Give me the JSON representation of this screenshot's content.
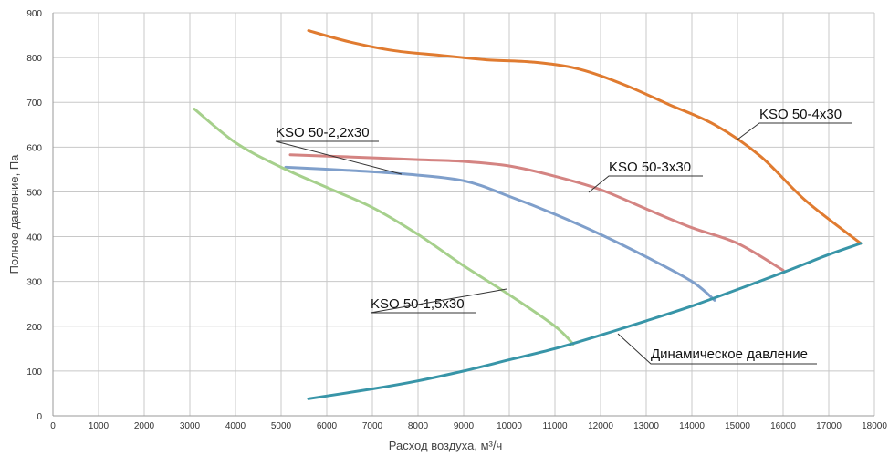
{
  "chart_data": {
    "type": "line",
    "xlabel": "Расход воздуха, м³/ч",
    "ylabel": "Полное давление, Па",
    "xlim": [
      0,
      18000
    ],
    "ylim": [
      0,
      900
    ],
    "xticks": [
      0,
      1000,
      2000,
      3000,
      4000,
      5000,
      6000,
      7000,
      8000,
      9000,
      10000,
      11000,
      12000,
      13000,
      14000,
      15000,
      16000,
      17000,
      18000
    ],
    "yticks": [
      0,
      100,
      200,
      300,
      400,
      500,
      600,
      700,
      800,
      900
    ],
    "grid": true,
    "series": [
      {
        "name": "KSO 50-4x30",
        "color": "#e07b30",
        "points": [
          [
            5600,
            860
          ],
          [
            6500,
            835
          ],
          [
            7500,
            815
          ],
          [
            8500,
            805
          ],
          [
            9500,
            795
          ],
          [
            10500,
            790
          ],
          [
            11500,
            775
          ],
          [
            12500,
            740
          ],
          [
            13500,
            695
          ],
          [
            14500,
            650
          ],
          [
            15500,
            580
          ],
          [
            16500,
            480
          ],
          [
            17700,
            385
          ]
        ]
      },
      {
        "name": "KSO 50-3x30",
        "color": "#d48482",
        "points": [
          [
            5200,
            583
          ],
          [
            6500,
            578
          ],
          [
            8000,
            572
          ],
          [
            9000,
            568
          ],
          [
            10000,
            558
          ],
          [
            11000,
            535
          ],
          [
            12000,
            505
          ],
          [
            13000,
            462
          ],
          [
            14000,
            420
          ],
          [
            15000,
            385
          ],
          [
            16000,
            325
          ]
        ]
      },
      {
        "name": "KSO 50-2,2x30",
        "color": "#7f9fcb",
        "points": [
          [
            5100,
            555
          ],
          [
            6500,
            548
          ],
          [
            7700,
            540
          ],
          [
            9000,
            525
          ],
          [
            10000,
            490
          ],
          [
            11000,
            450
          ],
          [
            12000,
            405
          ],
          [
            13000,
            355
          ],
          [
            14000,
            300
          ],
          [
            14500,
            258
          ]
        ]
      },
      {
        "name": "KSO 50-1,5x30",
        "color": "#a6d08c",
        "points": [
          [
            3100,
            685
          ],
          [
            4000,
            610
          ],
          [
            5000,
            555
          ],
          [
            6000,
            510
          ],
          [
            7000,
            465
          ],
          [
            8000,
            405
          ],
          [
            9000,
            335
          ],
          [
            10000,
            270
          ],
          [
            11000,
            200
          ],
          [
            11400,
            160
          ]
        ]
      },
      {
        "name": "Динамическое давление",
        "color": "#3895a8",
        "points": [
          [
            5600,
            38
          ],
          [
            7000,
            60
          ],
          [
            8000,
            78
          ],
          [
            9000,
            100
          ],
          [
            10000,
            125
          ],
          [
            11000,
            150
          ],
          [
            12000,
            180
          ],
          [
            13000,
            212
          ],
          [
            14000,
            245
          ],
          [
            15000,
            282
          ],
          [
            16000,
            320
          ],
          [
            17000,
            360
          ],
          [
            17700,
            385
          ]
        ]
      }
    ],
    "annotations": [
      {
        "label": "KSO 50-4x30",
        "series": 0
      },
      {
        "label": "KSO 50-3x30",
        "series": 1
      },
      {
        "label": "KSO 50-2,2x30",
        "series": 2
      },
      {
        "label": "KSO 50-1,5x30",
        "series": 3
      },
      {
        "label": "Динамическое давление",
        "series": 4
      }
    ]
  }
}
